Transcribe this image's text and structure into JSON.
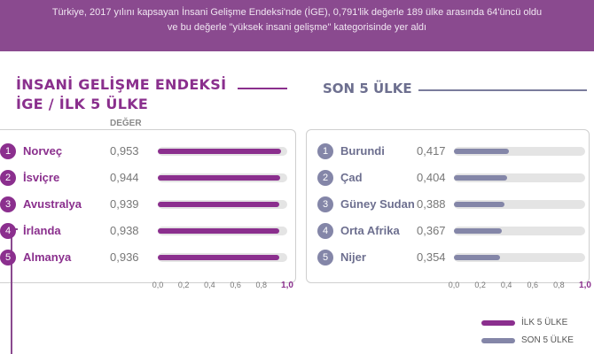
{
  "header": {
    "line1": "Türkiye, 2017 yılını kapsayan İnsani Gelişme Endeksi'nde (İGE), 0,791'lik değerle 189 ülke arasında 64'üncü oldu",
    "line2": "ve bu değerle \"yüksek insani gelişme\" kategorisinde yer aldı"
  },
  "left_title_1": "İNSANİ GELİŞME ENDEKSİ",
  "left_title_2": "İGE / İLK 5 ÜLKE",
  "right_title": "SON 5 ÜLKE",
  "value_header": "DEĞER",
  "colors": {
    "top5": "#8b2f8e",
    "bottom5": "#8486a8",
    "header_bg": "#8a4a8f",
    "track": "#e4e4e4"
  },
  "chart_data": [
    {
      "type": "bar",
      "orientation": "horizontal",
      "title": "İLK 5 ÜLKE",
      "categories": [
        "Norveç",
        "İsviçre",
        "Avustralya",
        "İrlanda",
        "Almanya"
      ],
      "ranks": [
        "1",
        "2",
        "3",
        "4",
        "5"
      ],
      "values": [
        0.953,
        0.944,
        0.939,
        0.938,
        0.936
      ],
      "value_labels": [
        "0,953",
        "0,944",
        "0,939",
        "0,938",
        "0,936"
      ],
      "xlim": [
        0,
        1
      ],
      "xticks": [
        "0,0",
        "0,2",
        "0,4",
        "0,6",
        "0,8",
        "1,0"
      ]
    },
    {
      "type": "bar",
      "orientation": "horizontal",
      "title": "SON 5 ÜLKE",
      "categories": [
        "Burundi",
        "Çad",
        "Güney Sudan",
        "Orta Afrika",
        "Nijer"
      ],
      "ranks": [
        "1",
        "2",
        "3",
        "4",
        "5"
      ],
      "values": [
        0.417,
        0.404,
        0.388,
        0.367,
        0.354
      ],
      "value_labels": [
        "0,417",
        "0,404",
        "0,388",
        "0,367",
        "0,354"
      ],
      "xlim": [
        0,
        1
      ],
      "xticks": [
        "0,0",
        "0,2",
        "0,4",
        "0,6",
        "0,8",
        "1,0"
      ]
    }
  ],
  "legend": [
    {
      "label": "İLK 5 ÜLKE",
      "color": "#8b2f8e"
    },
    {
      "label": "SON 5 ÜLKE",
      "color": "#8486a8"
    }
  ]
}
